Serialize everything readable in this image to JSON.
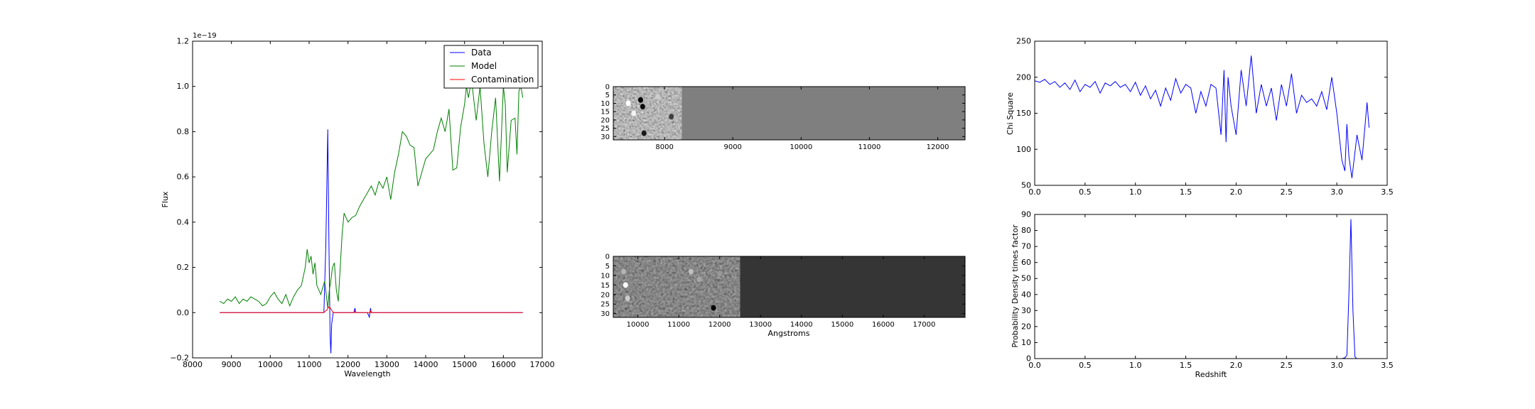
{
  "chart_data": [
    {
      "type": "line",
      "id": "spectrum",
      "title": "",
      "xlabel": "Wavelength",
      "ylabel": "Flux",
      "offset_text": "1e−19",
      "xlim": [
        8000,
        17000
      ],
      "ylim": [
        -0.2,
        1.2
      ],
      "xticks": [
        "8000",
        "9000",
        "10000",
        "11000",
        "12000",
        "13000",
        "14000",
        "15000",
        "16000",
        "17000"
      ],
      "yticks": [
        "−0.2",
        "0.0",
        "0.2",
        "0.4",
        "0.6",
        "0.8",
        "1.0",
        "1.2"
      ],
      "legend": {
        "placement": "top-right",
        "entries": [
          "Data",
          "Model",
          "Contamination"
        ]
      },
      "series": [
        {
          "name": "Data",
          "color": "#0000ff",
          "x": [
            8700,
            11380,
            11430,
            11480,
            11510,
            11540,
            11560,
            11580,
            11620,
            11660,
            12100,
            12150,
            12180,
            12200,
            12250,
            12500,
            12550,
            12580,
            12600,
            12650,
            16500
          ],
          "y": [
            0.0,
            0.0,
            0.3,
            0.81,
            0.3,
            -0.1,
            -0.18,
            -0.05,
            0.0,
            0.0,
            0.0,
            0.0,
            0.02,
            0.0,
            0.0,
            0.0,
            -0.02,
            0.02,
            0.0,
            0.0,
            0.0
          ]
        },
        {
          "name": "Model",
          "color": "#008000",
          "x": [
            8700,
            8800,
            8900,
            9000,
            9100,
            9200,
            9300,
            9400,
            9500,
            9600,
            9700,
            9800,
            9900,
            10000,
            10100,
            10200,
            10300,
            10400,
            10500,
            10600,
            10700,
            10800,
            10900,
            10950,
            11000,
            11050,
            11100,
            11150,
            11200,
            11300,
            11400,
            11480,
            11520,
            11550,
            11600,
            11650,
            11700,
            11750,
            11800,
            11850,
            11900,
            12000,
            12100,
            12200,
            12300,
            12400,
            12500,
            12600,
            12700,
            12800,
            12900,
            13000,
            13050,
            13100,
            13200,
            13300,
            13400,
            13500,
            13600,
            13700,
            13800,
            13900,
            14000,
            14100,
            14200,
            14300,
            14400,
            14500,
            14600,
            14700,
            14800,
            14900,
            15000,
            15050,
            15100,
            15150,
            15200,
            15300,
            15400,
            15500,
            15600,
            15700,
            15800,
            15900,
            16000,
            16050,
            16100,
            16200,
            16300,
            16350,
            16400,
            16450,
            16500
          ],
          "y": [
            0.05,
            0.04,
            0.06,
            0.05,
            0.07,
            0.04,
            0.06,
            0.05,
            0.07,
            0.06,
            0.05,
            0.03,
            0.04,
            0.07,
            0.09,
            0.06,
            0.04,
            0.08,
            0.03,
            0.07,
            0.1,
            0.12,
            0.2,
            0.28,
            0.22,
            0.25,
            0.17,
            0.22,
            0.12,
            0.08,
            0.14,
            0.02,
            0.1,
            0.13,
            0.2,
            0.22,
            0.1,
            0.05,
            0.2,
            0.35,
            0.44,
            0.4,
            0.42,
            0.43,
            0.47,
            0.5,
            0.53,
            0.56,
            0.52,
            0.58,
            0.55,
            0.6,
            0.55,
            0.5,
            0.62,
            0.7,
            0.8,
            0.78,
            0.74,
            0.73,
            0.56,
            0.62,
            0.68,
            0.7,
            0.72,
            0.8,
            0.86,
            0.8,
            0.9,
            0.63,
            0.64,
            0.82,
            0.92,
            1.0,
            0.95,
            1.0,
            1.0,
            0.85,
            1.0,
            0.75,
            0.6,
            0.8,
            0.95,
            0.58,
            1.0,
            0.92,
            0.62,
            0.85,
            0.86,
            0.7,
            0.98,
            1.0,
            0.95
          ]
        },
        {
          "name": "Contamination",
          "color": "#ff0000",
          "x": [
            8700,
            11380,
            11400,
            11450,
            11500,
            11550,
            11600,
            11620,
            12170,
            12185,
            12200,
            12560,
            12575,
            12590,
            16500
          ],
          "y": [
            0.0,
            0.0,
            0.005,
            0.01,
            0.025,
            0.02,
            0.005,
            0.0,
            0.0,
            0.01,
            0.0,
            0.0,
            0.01,
            0.0,
            0.0
          ]
        }
      ]
    },
    {
      "type": "heatmap",
      "id": "image-top",
      "xlabel": "",
      "ylabel": "",
      "xlim": [
        7250,
        12400
      ],
      "ylim": [
        32,
        0
      ],
      "xticks": [
        "8000",
        "9000",
        "10000",
        "11000",
        "12000"
      ],
      "yticks": [
        "0",
        "5",
        "10",
        "15",
        "20",
        "25",
        "30"
      ],
      "colormap": "gray",
      "background_color": "#7f7f7f",
      "data_region_end": 8250,
      "features": [
        {
          "x": 7650,
          "y": 8,
          "value": 0.0
        },
        {
          "x": 7680,
          "y": 12,
          "value": 0.05
        },
        {
          "x": 7470,
          "y": 10,
          "value": 1.0
        },
        {
          "x": 7550,
          "y": 16,
          "value": 0.95
        },
        {
          "x": 7700,
          "y": 28,
          "value": 0.1
        },
        {
          "x": 7900,
          "y": 6,
          "value": 0.8
        },
        {
          "x": 8100,
          "y": 18,
          "value": 0.25
        }
      ]
    },
    {
      "type": "heatmap",
      "id": "image-bottom",
      "xlabel": "Angstroms",
      "ylabel": "",
      "xlim": [
        9400,
        18000
      ],
      "ylim": [
        32,
        0
      ],
      "xticks": [
        "10000",
        "11000",
        "12000",
        "13000",
        "14000",
        "15000",
        "16000",
        "17000"
      ],
      "yticks": [
        "0",
        "5",
        "10",
        "15",
        "20",
        "25",
        "30"
      ],
      "colormap": "gray",
      "background_color": "#353535",
      "data_region_end": 12500,
      "features": [
        {
          "x": 9700,
          "y": 15,
          "value": 1.0
        },
        {
          "x": 9750,
          "y": 22,
          "value": 0.8
        },
        {
          "x": 9650,
          "y": 8,
          "value": 0.7
        },
        {
          "x": 11300,
          "y": 8,
          "value": 0.75
        },
        {
          "x": 11500,
          "y": 12,
          "value": 0.65
        },
        {
          "x": 11850,
          "y": 27,
          "value": 0.0
        },
        {
          "x": 12000,
          "y": 9,
          "value": 0.6
        }
      ]
    },
    {
      "type": "line",
      "id": "chi-square",
      "xlabel": "",
      "ylabel": "Chi Square",
      "xlim": [
        0.0,
        3.5
      ],
      "ylim": [
        50,
        250
      ],
      "xticks": [
        "0.0",
        "0.5",
        "1.0",
        "1.5",
        "2.0",
        "2.5",
        "3.0",
        "3.5"
      ],
      "yticks": [
        "50",
        "100",
        "150",
        "200",
        "250"
      ],
      "series": [
        {
          "color": "#0000ff",
          "x": [
            0.0,
            0.05,
            0.1,
            0.15,
            0.2,
            0.25,
            0.3,
            0.35,
            0.4,
            0.45,
            0.5,
            0.55,
            0.6,
            0.65,
            0.7,
            0.75,
            0.8,
            0.85,
            0.9,
            0.95,
            1.0,
            1.05,
            1.1,
            1.15,
            1.2,
            1.25,
            1.3,
            1.35,
            1.4,
            1.45,
            1.5,
            1.55,
            1.6,
            1.65,
            1.7,
            1.75,
            1.8,
            1.85,
            1.88,
            1.9,
            1.92,
            1.95,
            2.0,
            2.05,
            2.1,
            2.15,
            2.2,
            2.25,
            2.3,
            2.35,
            2.4,
            2.45,
            2.5,
            2.55,
            2.6,
            2.65,
            2.7,
            2.75,
            2.8,
            2.85,
            2.9,
            2.95,
            3.0,
            3.05,
            3.08,
            3.1,
            3.12,
            3.15,
            3.2,
            3.25,
            3.3,
            3.32
          ],
          "y": [
            195,
            193,
            197,
            190,
            194,
            186,
            192,
            183,
            196,
            180,
            190,
            186,
            194,
            178,
            192,
            188,
            194,
            186,
            190,
            180,
            193,
            175,
            188,
            170,
            182,
            160,
            185,
            168,
            198,
            178,
            190,
            185,
            150,
            180,
            160,
            190,
            185,
            120,
            210,
            110,
            200,
            160,
            120,
            210,
            160,
            230,
            150,
            190,
            160,
            185,
            140,
            190,
            160,
            205,
            150,
            175,
            165,
            170,
            160,
            180,
            155,
            200,
            150,
            85,
            70,
            135,
            90,
            60,
            120,
            85,
            165,
            130
          ]
        }
      ]
    },
    {
      "type": "line",
      "id": "probability",
      "xlabel": "Redshift",
      "ylabel": "Probability Density times factor",
      "xlim": [
        0.0,
        3.5
      ],
      "ylim": [
        0,
        90
      ],
      "xticks": [
        "0.0",
        "0.5",
        "1.0",
        "1.5",
        "2.0",
        "2.5",
        "3.0",
        "3.5"
      ],
      "yticks": [
        "0",
        "10",
        "20",
        "30",
        "40",
        "50",
        "60",
        "70",
        "80",
        "90"
      ],
      "series": [
        {
          "color": "#0000ff",
          "x": [
            0.0,
            3.05,
            3.08,
            3.1,
            3.12,
            3.14,
            3.16,
            3.18,
            3.2,
            3.3
          ],
          "y": [
            0,
            0,
            0.5,
            2,
            40,
            87,
            30,
            1,
            0,
            0
          ]
        }
      ]
    }
  ]
}
